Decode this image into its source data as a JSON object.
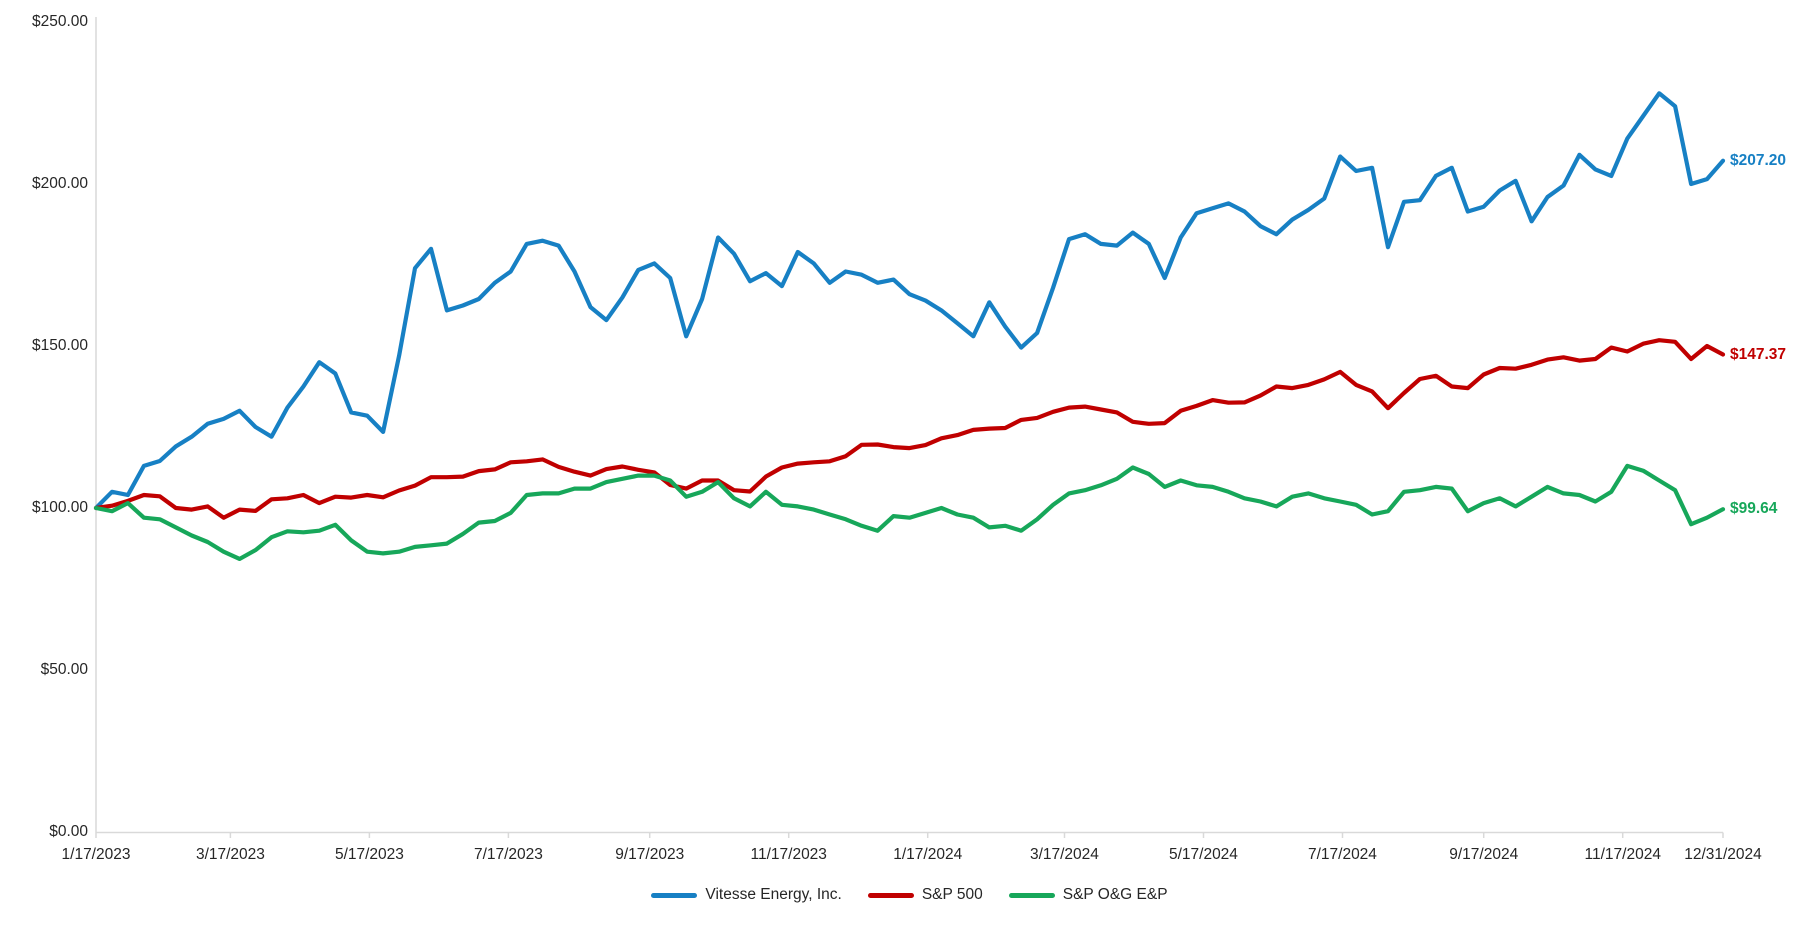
{
  "chart_data": {
    "type": "line",
    "title": "",
    "x_start_date": "1/17/2023",
    "x_end_date": "12/31/2024",
    "x_interval_days": 7,
    "x_total_days": 714,
    "grid": false,
    "legend_position": "bottom-center",
    "axis_color": "#D9D9D9",
    "text_color": "#262626",
    "y_axis": {
      "min": 0,
      "max": 250,
      "tick_step": 50,
      "labels": [
        "$0.00",
        "$50.00",
        "$100.00",
        "$150.00",
        "$200.00",
        "$250.00"
      ],
      "values": [
        0,
        50,
        100,
        150,
        200,
        250
      ]
    },
    "x_ticks": [
      {
        "label": "1/17/2023",
        "day": 0
      },
      {
        "label": "3/17/2023",
        "day": 59
      },
      {
        "label": "5/17/2023",
        "day": 120
      },
      {
        "label": "7/17/2023",
        "day": 181
      },
      {
        "label": "9/17/2023",
        "day": 243
      },
      {
        "label": "11/17/2023",
        "day": 304
      },
      {
        "label": "1/17/2024",
        "day": 365
      },
      {
        "label": "3/17/2024",
        "day": 425
      },
      {
        "label": "5/17/2024",
        "day": 486
      },
      {
        "label": "7/17/2024",
        "day": 547
      },
      {
        "label": "9/17/2024",
        "day": 609
      },
      {
        "label": "11/17/2024",
        "day": 670
      },
      {
        "label": "12/31/2024",
        "day": 714
      }
    ],
    "series": [
      {
        "name": "Vitesse Energy, Inc.",
        "color": "#1780C4",
        "end_label": "$207.20",
        "end_value": 207.2,
        "values": [
          100,
          105,
          104,
          113,
          114.5,
          119,
          122,
          126,
          127.5,
          130,
          125,
          122,
          131,
          137.5,
          145,
          141.5,
          129.5,
          128.5,
          123.5,
          147,
          174,
          180,
          161,
          162.5,
          164.5,
          169.5,
          173,
          181.5,
          182.5,
          181,
          173,
          162,
          158,
          165,
          173.5,
          175.5,
          171,
          153,
          164.5,
          183.5,
          178.5,
          170,
          172.5,
          168.5,
          179,
          175.5,
          169.5,
          173,
          172,
          169.5,
          170.5,
          166,
          164,
          161,
          157,
          153,
          163.5,
          156,
          149.5,
          154,
          168,
          183,
          184.5,
          181.5,
          181,
          185,
          181.5,
          171,
          183.5,
          191,
          192.5,
          194,
          191.5,
          187,
          184.5,
          189,
          192,
          195.5,
          208.5,
          204,
          205,
          180.5,
          194.5,
          195,
          202.5,
          205,
          191.5,
          193,
          198,
          201,
          188.5,
          196,
          199.5,
          209,
          204.5,
          202.5,
          214,
          221,
          228,
          224,
          200,
          201.5,
          207.2
        ]
      },
      {
        "name": "S&P 500",
        "color": "#C00000",
        "end_label": "$147.37",
        "end_value": 147.37,
        "values": [
          100,
          100.7,
          102.2,
          104,
          103.6,
          100,
          99.5,
          100.5,
          97,
          99.5,
          99.1,
          102.7,
          103,
          104,
          101.5,
          103.5,
          103.2,
          104,
          103.3,
          105.4,
          106.9,
          109.5,
          109.5,
          109.7,
          111.4,
          111.9,
          114.1,
          114.4,
          115,
          112.7,
          111.2,
          110,
          112,
          112.8,
          111.8,
          111,
          107.1,
          106,
          108.5,
          108.5,
          105.5,
          105.1,
          109.7,
          112.5,
          113.7,
          114.1,
          114.4,
          116,
          119.5,
          119.6,
          118.8,
          118.5,
          119.4,
          121.5,
          122.5,
          124.1,
          124.5,
          124.7,
          127.2,
          127.8,
          129.7,
          131,
          131.3,
          130.4,
          129.5,
          126.6,
          126,
          126.2,
          130,
          131.5,
          133.3,
          132.5,
          132.6,
          134.7,
          137.5,
          137,
          138,
          139.7,
          142,
          138,
          136,
          130.8,
          135.5,
          139.8,
          140.8,
          137.5,
          137,
          141.2,
          143.2,
          143,
          144.2,
          145.8,
          146.5,
          145.5,
          146,
          149.5,
          148.3,
          150.7,
          151.8,
          151.3,
          146,
          150,
          147.37
        ]
      },
      {
        "name": "S&P O&G E&P",
        "color": "#17A75A",
        "end_label": "$99.64",
        "end_value": 99.64,
        "values": [
          100,
          99,
          101.5,
          97,
          96.5,
          94,
          91.5,
          89.5,
          86.5,
          84.3,
          87,
          91,
          92.8,
          92.5,
          93,
          94.8,
          90,
          86.5,
          86,
          86.5,
          88,
          88.5,
          89,
          92,
          95.5,
          96,
          98.5,
          104,
          104.5,
          104.5,
          106,
          106,
          108,
          109,
          110,
          110,
          108.5,
          103.5,
          105,
          108,
          103,
          100.5,
          105,
          101,
          100.5,
          99.5,
          98,
          96.5,
          94.5,
          93,
          97.5,
          97,
          98.5,
          100,
          98,
          97,
          94,
          94.5,
          93,
          96.5,
          101,
          104.5,
          105.5,
          107,
          109,
          112.5,
          110.5,
          106.5,
          108.5,
          107,
          106.5,
          105,
          103,
          102,
          100.5,
          103.5,
          104.5,
          103,
          102,
          101,
          98,
          99,
          105,
          105.5,
          106.5,
          106,
          99,
          101.5,
          103,
          100.5,
          103.5,
          106.5,
          104.5,
          104,
          102,
          105,
          113,
          111.5,
          108.5,
          105.5,
          95,
          97,
          99.64
        ]
      }
    ]
  }
}
